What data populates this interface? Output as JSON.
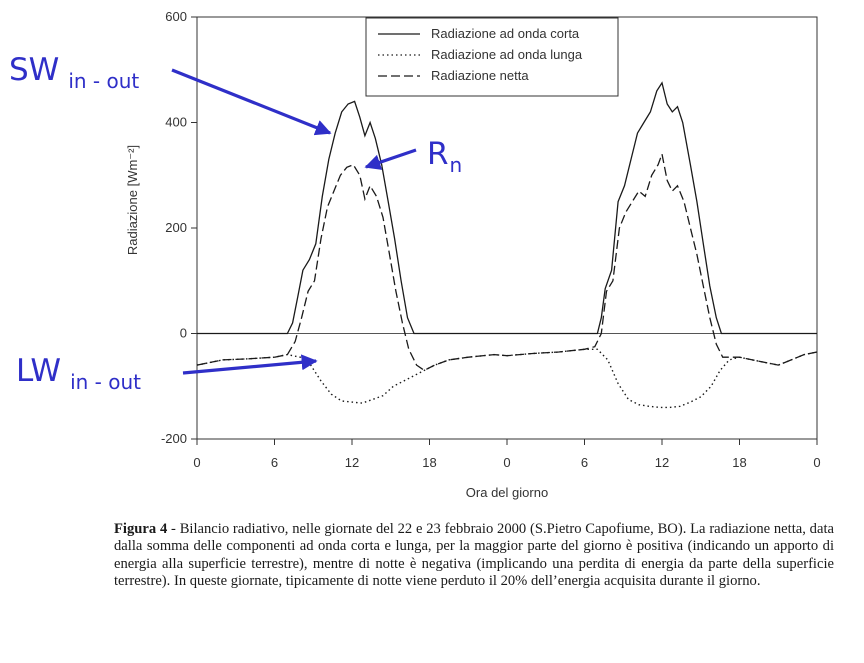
{
  "chart_data": {
    "type": "line",
    "xlabel": "Ora del giorno",
    "ylabel": "Radiazione [Wm⁻²]",
    "ylim": [
      -200,
      600
    ],
    "yticks": [
      -200,
      0,
      200,
      400,
      600
    ],
    "xticklabels": [
      "0",
      "6",
      "12",
      "18",
      "0",
      "6",
      "12",
      "18",
      "0"
    ],
    "x_hours": [
      0,
      6,
      12,
      18,
      24,
      30,
      36,
      42,
      48
    ],
    "xlim": [
      0,
      48
    ],
    "legend_position": "top-right",
    "grid": false,
    "series": [
      {
        "name": "Radiazione ad onda corta",
        "style": "solid",
        "points": [
          [
            0,
            0
          ],
          [
            6,
            0
          ],
          [
            7,
            0
          ],
          [
            7.4,
            20
          ],
          [
            7.8,
            70
          ],
          [
            8.2,
            120
          ],
          [
            8.7,
            140
          ],
          [
            9.2,
            170
          ],
          [
            9.7,
            260
          ],
          [
            10.2,
            330
          ],
          [
            10.7,
            380
          ],
          [
            11.2,
            420
          ],
          [
            11.7,
            435
          ],
          [
            12.2,
            440
          ],
          [
            12.6,
            410
          ],
          [
            13,
            375
          ],
          [
            13.4,
            400
          ],
          [
            13.8,
            370
          ],
          [
            14.3,
            320
          ],
          [
            14.8,
            250
          ],
          [
            15.3,
            180
          ],
          [
            15.8,
            100
          ],
          [
            16.3,
            30
          ],
          [
            16.8,
            0
          ],
          [
            18,
            0
          ],
          [
            24,
            0
          ],
          [
            30,
            0
          ],
          [
            31,
            0
          ],
          [
            31.3,
            30
          ],
          [
            31.6,
            85
          ],
          [
            32.1,
            120
          ],
          [
            32.6,
            250
          ],
          [
            33.1,
            280
          ],
          [
            33.6,
            330
          ],
          [
            34.1,
            380
          ],
          [
            34.6,
            400
          ],
          [
            35.1,
            420
          ],
          [
            35.6,
            460
          ],
          [
            36,
            475
          ],
          [
            36.4,
            435
          ],
          [
            36.8,
            420
          ],
          [
            37.2,
            430
          ],
          [
            37.6,
            400
          ],
          [
            38.2,
            320
          ],
          [
            38.7,
            250
          ],
          [
            39.2,
            170
          ],
          [
            39.7,
            90
          ],
          [
            40.2,
            30
          ],
          [
            40.6,
            0
          ],
          [
            42,
            0
          ],
          [
            48,
            0
          ]
        ]
      },
      {
        "name": "Radiazione ad onda lunga",
        "style": "dotted",
        "points": [
          [
            0,
            -60
          ],
          [
            2,
            -50
          ],
          [
            4,
            -48
          ],
          [
            6,
            -45
          ],
          [
            7,
            -40
          ],
          [
            8,
            -45
          ],
          [
            8.8,
            -60
          ],
          [
            9.6,
            -90
          ],
          [
            10.4,
            -115
          ],
          [
            11.2,
            -128
          ],
          [
            12,
            -130
          ],
          [
            12.8,
            -132
          ],
          [
            13.6,
            -125
          ],
          [
            14.4,
            -118
          ],
          [
            15.2,
            -100
          ],
          [
            16,
            -90
          ],
          [
            16.8,
            -80
          ],
          [
            17.6,
            -70
          ],
          [
            18.4,
            -60
          ],
          [
            19.5,
            -50
          ],
          [
            21,
            -45
          ],
          [
            23,
            -40
          ],
          [
            24,
            -42
          ],
          [
            26,
            -38
          ],
          [
            28,
            -35
          ],
          [
            30,
            -30
          ],
          [
            31,
            -30
          ],
          [
            31.8,
            -50
          ],
          [
            32.6,
            -95
          ],
          [
            33.4,
            -125
          ],
          [
            34.2,
            -135
          ],
          [
            35,
            -138
          ],
          [
            35.8,
            -140
          ],
          [
            36.6,
            -140
          ],
          [
            37.4,
            -138
          ],
          [
            38.2,
            -130
          ],
          [
            39,
            -120
          ],
          [
            39.8,
            -100
          ],
          [
            40.5,
            -70
          ],
          [
            41.2,
            -50
          ],
          [
            42,
            -45
          ],
          [
            43,
            -50
          ],
          [
            44,
            -55
          ],
          [
            45,
            -60
          ],
          [
            46,
            -50
          ],
          [
            47,
            -40
          ],
          [
            48,
            -35
          ]
        ]
      },
      {
        "name": "Radiazione netta",
        "style": "dashed",
        "points": [
          [
            0,
            -60
          ],
          [
            2,
            -50
          ],
          [
            4,
            -48
          ],
          [
            6,
            -45
          ],
          [
            7,
            -40
          ],
          [
            7.6,
            -15
          ],
          [
            8.1,
            30
          ],
          [
            8.6,
            80
          ],
          [
            9.1,
            100
          ],
          [
            9.6,
            180
          ],
          [
            10.1,
            240
          ],
          [
            10.6,
            270
          ],
          [
            11.1,
            300
          ],
          [
            11.6,
            315
          ],
          [
            12.1,
            320
          ],
          [
            12.6,
            300
          ],
          [
            13,
            255
          ],
          [
            13.4,
            280
          ],
          [
            13.9,
            260
          ],
          [
            14.4,
            220
          ],
          [
            14.9,
            150
          ],
          [
            15.4,
            80
          ],
          [
            15.9,
            20
          ],
          [
            16.4,
            -30
          ],
          [
            17,
            -60
          ],
          [
            17.6,
            -70
          ],
          [
            18.4,
            -60
          ],
          [
            19.5,
            -50
          ],
          [
            21,
            -45
          ],
          [
            23,
            -40
          ],
          [
            24,
            -42
          ],
          [
            26,
            -38
          ],
          [
            28,
            -35
          ],
          [
            30,
            -30
          ],
          [
            30.8,
            -25
          ],
          [
            31.3,
            0
          ],
          [
            31.7,
            80
          ],
          [
            32.2,
            100
          ],
          [
            32.7,
            200
          ],
          [
            33.2,
            230
          ],
          [
            33.7,
            250
          ],
          [
            34.2,
            270
          ],
          [
            34.7,
            260
          ],
          [
            35.2,
            300
          ],
          [
            35.7,
            320
          ],
          [
            36,
            340
          ],
          [
            36.4,
            290
          ],
          [
            36.8,
            270
          ],
          [
            37.2,
            280
          ],
          [
            37.7,
            250
          ],
          [
            38.2,
            200
          ],
          [
            38.7,
            150
          ],
          [
            39.2,
            90
          ],
          [
            39.7,
            30
          ],
          [
            40.2,
            -20
          ],
          [
            40.7,
            -45
          ],
          [
            42,
            -45
          ],
          [
            43,
            -50
          ],
          [
            44,
            -55
          ],
          [
            45,
            -60
          ],
          [
            46,
            -50
          ],
          [
            47,
            -40
          ],
          [
            48,
            -35
          ]
        ]
      }
    ],
    "annotations": [
      {
        "id": "sw",
        "label": "SW",
        "sub": "in - out"
      },
      {
        "id": "rn",
        "label": "R",
        "sub": "n"
      },
      {
        "id": "lw",
        "label": "LW",
        "sub": "in - out"
      }
    ]
  },
  "caption": {
    "label": "Figura 4",
    "text": " - Bilancio radiativo, nelle giornate del 22 e 23 febbraio 2000 (S.Pietro Capofiume, BO). La radiazione netta, data dalla somma delle componenti ad onda corta e lunga, per la maggior parte del giorno è positiva (indicando un apporto di energia alla superficie terrestre), mentre di notte è negativa (implicando una perdita di energia da parte della superficie terrestre). In queste giornate, tipicamente di notte viene perduto il 20% dell’energia acquisita durante il giorno."
  },
  "colors": {
    "annotation": "#2f2fc8",
    "line": "#1a1a1a",
    "axis": "#333333"
  }
}
